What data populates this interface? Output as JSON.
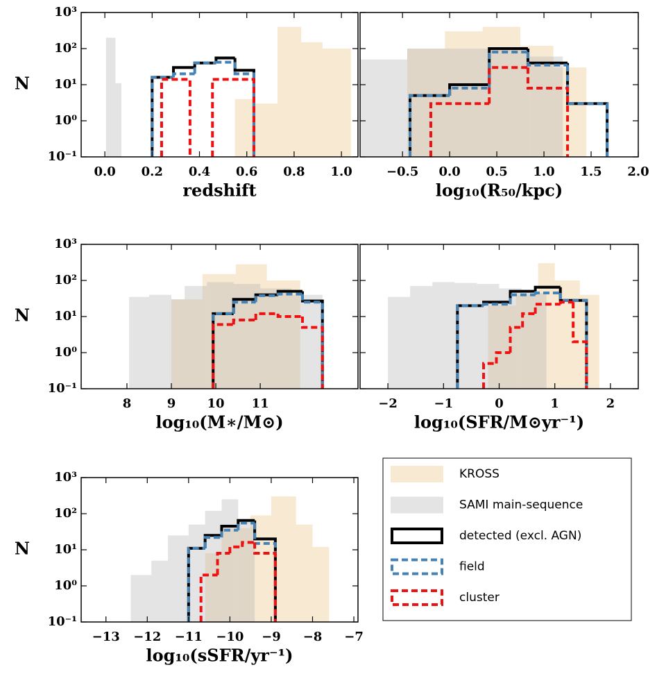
{
  "chart_data": [
    {
      "type": "histogram",
      "xlabel": "redshift",
      "ylabel": "N",
      "log_y": true,
      "ytick_labels": true,
      "xlim": [
        -0.1,
        1.07
      ],
      "ylim": [
        0.1,
        1000
      ],
      "xticks": [
        {
          "value": 0,
          "label": "0.0"
        },
        {
          "value": 0.2,
          "label": "0.2"
        },
        {
          "value": 0.4,
          "label": "0.4"
        },
        {
          "value": 0.6,
          "label": "0.6"
        },
        {
          "value": 0.8,
          "label": "0.8"
        },
        {
          "value": 1.0,
          "label": "1.0"
        }
      ],
      "yticks": [
        {
          "value": 0.1,
          "label": "10⁻¹"
        },
        {
          "value": 1,
          "label": "10⁰"
        },
        {
          "value": 10,
          "label": "10¹"
        },
        {
          "value": 100,
          "label": "10²"
        },
        {
          "value": 1000,
          "label": "10³"
        }
      ],
      "series": [
        {
          "style": "fill",
          "color": "#e9c48a",
          "alpha": 0.38,
          "bins": [
            0.55,
            0.625,
            0.73,
            0.83,
            0.92,
            1.04
          ],
          "values": [
            4,
            3,
            400,
            150,
            100
          ]
        },
        {
          "style": "fill",
          "color": "#b8b8b8",
          "alpha": 0.38,
          "bins": [
            0.005,
            0.045,
            0.07
          ],
          "values": [
            200,
            11
          ]
        },
        {
          "style": "step",
          "color": "#000000",
          "dash": false,
          "bins": [
            0.2,
            0.29,
            0.38,
            0.47,
            0.55,
            0.63
          ],
          "values": [
            16,
            30,
            40,
            55,
            25
          ]
        },
        {
          "style": "step",
          "color": "#4682b4",
          "dash": true,
          "bins": [
            0.2,
            0.29,
            0.38,
            0.47,
            0.55,
            0.63
          ],
          "values": [
            16,
            20,
            40,
            42,
            20
          ]
        },
        {
          "style": "step",
          "color": "#ee1111",
          "dash": true,
          "bins": [
            0.24,
            0.36,
            0.455,
            0.63
          ],
          "values": [
            14,
            null,
            14
          ]
        }
      ]
    },
    {
      "type": "histogram",
      "xlabel": "log₁₀(R₅₀/kpc)",
      "log_y": true,
      "ytick_labels": false,
      "xlim": [
        -0.95,
        2.0
      ],
      "ylim": [
        0.1,
        1000
      ],
      "xticks": [
        {
          "value": -0.5,
          "label": "−0.5"
        },
        {
          "value": 0,
          "label": "0.0"
        },
        {
          "value": 0.5,
          "label": "0.5"
        },
        {
          "value": 1.0,
          "label": "1.0"
        },
        {
          "value": 1.5,
          "label": "1.5"
        },
        {
          "value": 2.0,
          "label": "2.0"
        }
      ],
      "yticks": [
        0.1,
        1,
        10,
        100,
        1000
      ],
      "series": [
        {
          "style": "fill",
          "color": "#e9c48a",
          "alpha": 0.38,
          "bins": [
            -0.45,
            -0.05,
            0.35,
            0.75,
            1.1,
            1.45
          ],
          "values": [
            100,
            300,
            400,
            120,
            30
          ]
        },
        {
          "style": "fill",
          "color": "#b8b8b8",
          "alpha": 0.38,
          "bins": [
            -0.95,
            -0.45,
            0.0,
            0.45,
            0.85,
            1.2
          ],
          "values": [
            50,
            100,
            100,
            100,
            60
          ]
        },
        {
          "style": "step",
          "color": "#000000",
          "dash": false,
          "bins": [
            -0.42,
            0.0,
            0.42,
            0.83,
            1.25,
            1.67
          ],
          "values": [
            5,
            10,
            100,
            40,
            3
          ]
        },
        {
          "style": "step",
          "color": "#4682b4",
          "dash": true,
          "bins": [
            -0.42,
            0.0,
            0.42,
            0.83,
            1.25,
            1.67
          ],
          "values": [
            5,
            8,
            80,
            35,
            3
          ]
        },
        {
          "style": "step",
          "color": "#ee1111",
          "dash": true,
          "bins": [
            -0.2,
            0.42,
            0.83,
            1.25
          ],
          "values": [
            3,
            30,
            8
          ]
        }
      ]
    },
    {
      "type": "histogram",
      "xlabel": "log₁₀(M∗/M⊙)",
      "ylabel": "N",
      "log_y": true,
      "ytick_labels": true,
      "xlim": [
        6.97,
        13.2
      ],
      "ylim": [
        0.1,
        1000
      ],
      "xticks": [
        8,
        9,
        10,
        11
      ],
      "yticks": [
        {
          "value": 0.1,
          "label": "10⁻¹"
        },
        {
          "value": 1,
          "label": "10⁰"
        },
        {
          "value": 10,
          "label": "10¹"
        },
        {
          "value": 100,
          "label": "10²"
        },
        {
          "value": 1000,
          "label": "10³"
        }
      ],
      "series": [
        {
          "style": "fill",
          "color": "#e9c48a",
          "alpha": 0.38,
          "bins": [
            9.0,
            9.7,
            10.45,
            11.15,
            11.9
          ],
          "values": [
            30,
            150,
            280,
            100
          ]
        },
        {
          "style": "fill",
          "color": "#b8b8b8",
          "alpha": 0.38,
          "bins": [
            8.05,
            8.5,
            9.0,
            9.3,
            9.8,
            10.4,
            11.0,
            11.7,
            12.4
          ],
          "values": [
            35,
            40,
            30,
            70,
            90,
            80,
            60,
            40
          ]
        },
        {
          "style": "step",
          "color": "#000000",
          "dash": false,
          "bins": [
            9.94,
            10.4,
            10.9,
            11.4,
            11.95,
            12.4
          ],
          "values": [
            12,
            30,
            40,
            50,
            27
          ]
        },
        {
          "style": "step",
          "color": "#4682b4",
          "dash": true,
          "bins": [
            9.94,
            10.4,
            10.9,
            11.4,
            11.95,
            12.4
          ],
          "values": [
            12,
            25,
            38,
            42,
            25
          ]
        },
        {
          "style": "step",
          "color": "#ee1111",
          "dash": true,
          "bins": [
            9.94,
            10.4,
            10.9,
            11.4,
            11.95,
            12.4
          ],
          "values": [
            6,
            8,
            12,
            10,
            5
          ]
        }
      ]
    },
    {
      "type": "histogram",
      "xlabel": "log₁₀(SFR/M⊙yr⁻¹)",
      "log_y": true,
      "ytick_labels": false,
      "xlim": [
        -2.5,
        2.5
      ],
      "ylim": [
        0.1,
        1000
      ],
      "xticks": [
        {
          "value": -2,
          "label": "−2"
        },
        {
          "value": -1,
          "label": "−1"
        },
        0,
        1,
        2
      ],
      "yticks": [
        0.1,
        1,
        10,
        100,
        1000
      ],
      "series": [
        {
          "style": "fill",
          "color": "#e9c48a",
          "alpha": 0.38,
          "bins": [
            -0.2,
            0.3,
            0.7,
            1.0,
            1.45,
            1.8
          ],
          "values": [
            20,
            40,
            300,
            100,
            40
          ]
        },
        {
          "style": "fill",
          "color": "#b8b8b8",
          "alpha": 0.38,
          "bins": [
            -2.0,
            -1.6,
            -1.2,
            -0.8,
            -0.4,
            0.0,
            0.4,
            0.85
          ],
          "values": [
            35,
            70,
            90,
            85,
            80,
            60,
            45
          ]
        },
        {
          "style": "step",
          "color": "#000000",
          "dash": false,
          "bins": [
            -0.75,
            -0.28,
            0.2,
            0.65,
            1.1,
            1.57
          ],
          "values": [
            20,
            25,
            50,
            65,
            28
          ]
        },
        {
          "style": "step",
          "color": "#4682b4",
          "dash": true,
          "bins": [
            -0.75,
            -0.28,
            0.2,
            0.65,
            1.1,
            1.57
          ],
          "values": [
            20,
            22,
            40,
            45,
            28
          ]
        },
        {
          "style": "step",
          "color": "#ee1111",
          "dash": true,
          "bins": [
            -0.28,
            -0.05,
            0.2,
            0.42,
            0.65,
            1.1,
            1.33,
            1.57
          ],
          "values": [
            0.5,
            1,
            5,
            12,
            22,
            25,
            2
          ]
        }
      ]
    },
    {
      "type": "histogram",
      "xlabel": "log₁₀(sSFR/yr⁻¹)",
      "ylabel": "N",
      "log_y": true,
      "ytick_labels": true,
      "xlim": [
        -13.6,
        -6.9
      ],
      "ylim": [
        0.1,
        1000
      ],
      "xticks": [
        {
          "value": -13,
          "label": "−13"
        },
        {
          "value": -12,
          "label": "−12"
        },
        {
          "value": -11,
          "label": "−11"
        },
        {
          "value": -10,
          "label": "−10"
        },
        {
          "value": -9,
          "label": "−9"
        },
        {
          "value": -8,
          "label": "−8"
        },
        {
          "value": -7,
          "label": "−7"
        }
      ],
      "yticks": [
        {
          "value": 0.1,
          "label": "10⁻¹"
        },
        {
          "value": 1,
          "label": "10⁰"
        },
        {
          "value": 10,
          "label": "10¹"
        },
        {
          "value": 100,
          "label": "10²"
        },
        {
          "value": 1000,
          "label": "10³"
        }
      ],
      "series": [
        {
          "name": "KROSS",
          "style": "fill",
          "color": "#e9c48a",
          "alpha": 0.38,
          "bins": [
            -10.6,
            -10.2,
            -9.5,
            -9.0,
            -8.4,
            -8.0,
            -7.6
          ],
          "values": [
            8,
            40,
            90,
            300,
            50,
            12
          ]
        },
        {
          "name": "SAMI main-sequence",
          "style": "fill",
          "color": "#b8b8b8",
          "alpha": 0.38,
          "bins": [
            -12.4,
            -11.9,
            -11.5,
            -11.0,
            -10.6,
            -10.2,
            -9.8,
            -9.4
          ],
          "values": [
            2,
            5,
            25,
            50,
            120,
            250,
            60
          ]
        },
        {
          "name": "detected (excl. AGN)",
          "style": "step",
          "color": "#000000",
          "dash": false,
          "bins": [
            -11.0,
            -10.6,
            -10.2,
            -9.8,
            -9.4,
            -8.9
          ],
          "values": [
            11,
            25,
            45,
            65,
            20
          ]
        },
        {
          "name": "field",
          "style": "step",
          "color": "#4682b4",
          "dash": true,
          "bins": [
            -11.0,
            -10.6,
            -10.2,
            -9.8,
            -9.4,
            -8.9
          ],
          "values": [
            11,
            22,
            35,
            55,
            15
          ]
        },
        {
          "name": "cluster",
          "style": "step",
          "color": "#ee1111",
          "dash": true,
          "bins": [
            -10.7,
            -10.3,
            -10.0,
            -9.7,
            -9.4,
            -8.9
          ],
          "values": [
            2,
            8,
            12,
            16,
            8
          ]
        }
      ]
    }
  ]
}
